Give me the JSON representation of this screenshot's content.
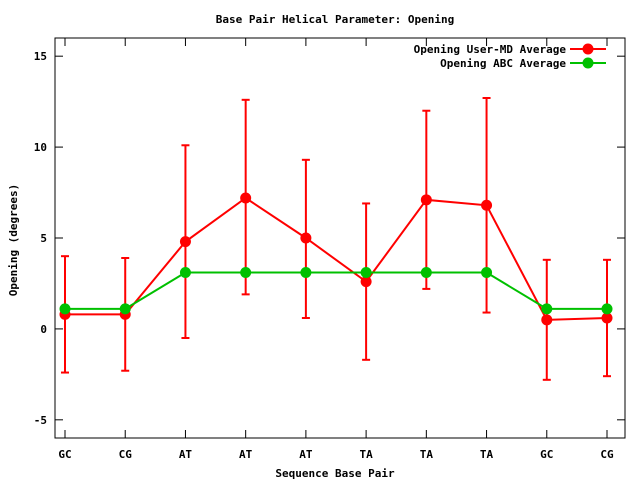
{
  "chart_data": {
    "type": "line",
    "title": "Base Pair Helical Parameter: Opening",
    "xlabel": "Sequence Base Pair",
    "ylabel": "Opening (degrees)",
    "categories": [
      "GC",
      "CG",
      "AT",
      "AT",
      "AT",
      "TA",
      "TA",
      "TA",
      "GC",
      "CG"
    ],
    "ylim": [
      -6,
      16
    ],
    "yticks": [
      -5,
      0,
      5,
      10,
      15
    ],
    "grid": false,
    "legend_position": "top-right",
    "series": [
      {
        "name": "Opening User-MD Average",
        "color": "#ff0000",
        "values": [
          0.8,
          0.8,
          4.8,
          7.2,
          5.0,
          2.6,
          7.1,
          6.8,
          0.5,
          0.6
        ],
        "error_low": [
          -2.4,
          -2.3,
          -0.5,
          1.9,
          0.6,
          -1.7,
          2.2,
          0.9,
          -2.8,
          -2.6
        ],
        "error_high": [
          4.0,
          3.9,
          10.1,
          12.6,
          9.3,
          6.9,
          12.0,
          12.7,
          3.8,
          3.8
        ]
      },
      {
        "name": "Opening ABC Average",
        "color": "#00c000",
        "values": [
          1.1,
          1.1,
          3.1,
          3.1,
          3.1,
          3.1,
          3.1,
          3.1,
          1.1,
          1.1
        ]
      }
    ]
  }
}
